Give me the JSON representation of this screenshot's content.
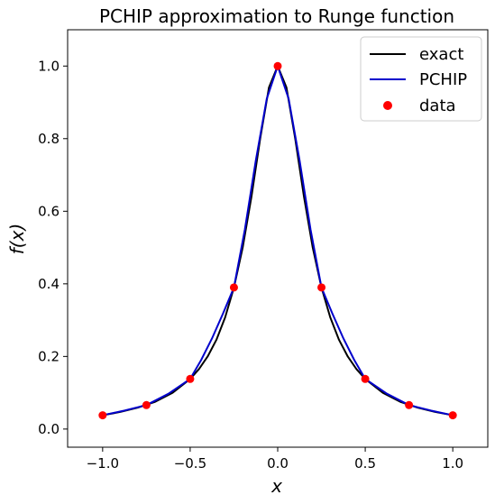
{
  "chart_data": {
    "type": "line",
    "title": "PCHIP approximation to Runge function",
    "xlabel": "x",
    "ylabel": "f(x)",
    "xlim": [
      -1.2,
      1.2
    ],
    "ylim": [
      -0.05,
      1.1
    ],
    "xticks": [
      -1.0,
      -0.5,
      0.0,
      0.5,
      1.0
    ],
    "xtick_labels": [
      "−1.0",
      "−0.5",
      "0.0",
      "0.5",
      "1.0"
    ],
    "yticks": [
      0.0,
      0.2,
      0.4,
      0.6,
      0.8,
      1.0
    ],
    "ytick_labels": [
      "0.0",
      "0.2",
      "0.4",
      "0.6",
      "0.8",
      "1.0"
    ],
    "grid": false,
    "legend_position": "top-right",
    "series": [
      {
        "name": "exact",
        "style": "line",
        "color": "#000000",
        "function": "1/(1+25x^2)",
        "x": [
          -1.0,
          -0.9,
          -0.8,
          -0.7,
          -0.6,
          -0.5,
          -0.45,
          -0.4,
          -0.35,
          -0.3,
          -0.25,
          -0.2,
          -0.15,
          -0.1,
          -0.05,
          0.0,
          0.05,
          0.1,
          0.15,
          0.2,
          0.25,
          0.3,
          0.35,
          0.4,
          0.45,
          0.5,
          0.6,
          0.7,
          0.8,
          0.9,
          1.0
        ],
        "y": [
          0.038,
          0.047,
          0.059,
          0.075,
          0.1,
          0.138,
          0.165,
          0.2,
          0.246,
          0.308,
          0.39,
          0.5,
          0.64,
          0.8,
          0.941,
          1.0,
          0.941,
          0.8,
          0.64,
          0.5,
          0.39,
          0.308,
          0.246,
          0.2,
          0.165,
          0.138,
          0.1,
          0.075,
          0.059,
          0.047,
          0.038
        ]
      },
      {
        "name": "PCHIP",
        "style": "line",
        "color": "#0000cc",
        "x": [
          -1.0,
          -0.875,
          -0.75,
          -0.625,
          -0.5,
          -0.4375,
          -0.375,
          -0.3125,
          -0.25,
          -0.1875,
          -0.125,
          -0.0625,
          0.0,
          0.0625,
          0.125,
          0.1875,
          0.25,
          0.3125,
          0.375,
          0.4375,
          0.5,
          0.625,
          0.75,
          0.875,
          1.0
        ],
        "y": [
          0.038,
          0.051,
          0.066,
          0.097,
          0.138,
          0.19,
          0.25,
          0.318,
          0.39,
          0.55,
          0.74,
          0.91,
          1.0,
          0.91,
          0.74,
          0.55,
          0.39,
          0.318,
          0.25,
          0.19,
          0.138,
          0.097,
          0.066,
          0.051,
          0.038
        ]
      },
      {
        "name": "data",
        "style": "markers",
        "color": "#ff0000",
        "x": [
          -1.0,
          -0.75,
          -0.5,
          -0.25,
          0.0,
          0.25,
          0.5,
          0.75,
          1.0
        ],
        "y": [
          0.038,
          0.066,
          0.138,
          0.39,
          1.0,
          0.39,
          0.138,
          0.066,
          0.038
        ]
      }
    ]
  }
}
